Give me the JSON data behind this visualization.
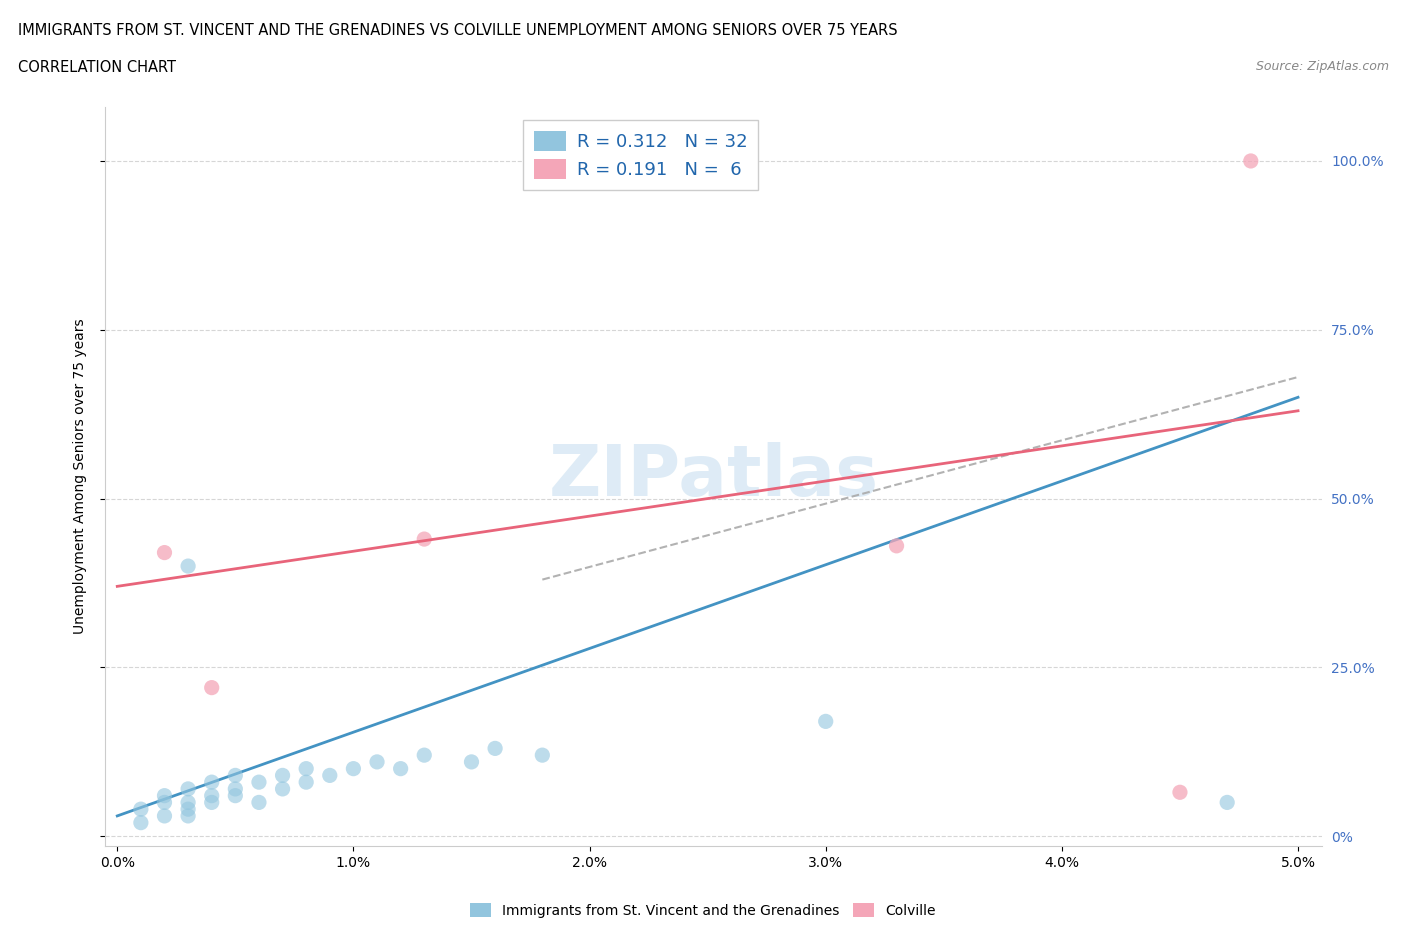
{
  "title_line1": "IMMIGRANTS FROM ST. VINCENT AND THE GRENADINES VS COLVILLE UNEMPLOYMENT AMONG SENIORS OVER 75 YEARS",
  "title_line2": "CORRELATION CHART",
  "source_text": "Source: ZipAtlas.com",
  "ylabel_label": "Unemployment Among Seniors over 75 years",
  "legend_blue_r": "0.312",
  "legend_blue_n": "32",
  "legend_pink_r": "0.191",
  "legend_pink_n": "6",
  "blue_color": "#92c5de",
  "pink_color": "#f4a6b8",
  "blue_line_color": "#4393c3",
  "pink_line_color": "#e8647a",
  "blue_dashed_color": "#aaaaaa",
  "legend_label_blue": "Immigrants from St. Vincent and the Grenadines",
  "legend_label_pink": "Colville",
  "watermark": "ZIPatlas",
  "blue_scatter_x": [
    0.001,
    0.001,
    0.002,
    0.002,
    0.002,
    0.003,
    0.003,
    0.003,
    0.003,
    0.004,
    0.004,
    0.004,
    0.005,
    0.005,
    0.005,
    0.006,
    0.006,
    0.007,
    0.007,
    0.008,
    0.008,
    0.009,
    0.01,
    0.011,
    0.012,
    0.013,
    0.015,
    0.016,
    0.018,
    0.003,
    0.03,
    0.047
  ],
  "blue_scatter_y": [
    0.04,
    0.02,
    0.05,
    0.03,
    0.06,
    0.03,
    0.05,
    0.07,
    0.04,
    0.06,
    0.08,
    0.05,
    0.07,
    0.09,
    0.06,
    0.08,
    0.05,
    0.09,
    0.07,
    0.08,
    0.1,
    0.09,
    0.1,
    0.11,
    0.1,
    0.12,
    0.11,
    0.13,
    0.12,
    0.4,
    0.17,
    0.05
  ],
  "pink_scatter_x": [
    0.002,
    0.004,
    0.013,
    0.033,
    0.045,
    0.048
  ],
  "pink_scatter_y": [
    0.42,
    0.22,
    0.44,
    0.43,
    0.065,
    1.0
  ],
  "blue_trend_x0": 0.0,
  "blue_trend_y0": 0.03,
  "blue_trend_x1": 0.05,
  "blue_trend_y1": 0.65,
  "pink_trend_x0": 0.0,
  "pink_trend_y0": 0.37,
  "pink_trend_x1": 0.05,
  "pink_trend_y1": 0.63,
  "xlim_min": -0.0005,
  "xlim_max": 0.051,
  "ylim_min": -0.015,
  "ylim_max": 1.08,
  "xticks": [
    0.0,
    0.01,
    0.02,
    0.03,
    0.04,
    0.05
  ],
  "xticklabels": [
    "0.0%",
    "1.0%",
    "2.0%",
    "3.0%",
    "4.0%",
    "5.0%"
  ],
  "yticks": [
    0.0,
    0.25,
    0.5,
    0.75,
    1.0
  ],
  "yticklabels_right": [
    "0%",
    "25.0%",
    "50.0%",
    "75.0%",
    "100.0%"
  ]
}
